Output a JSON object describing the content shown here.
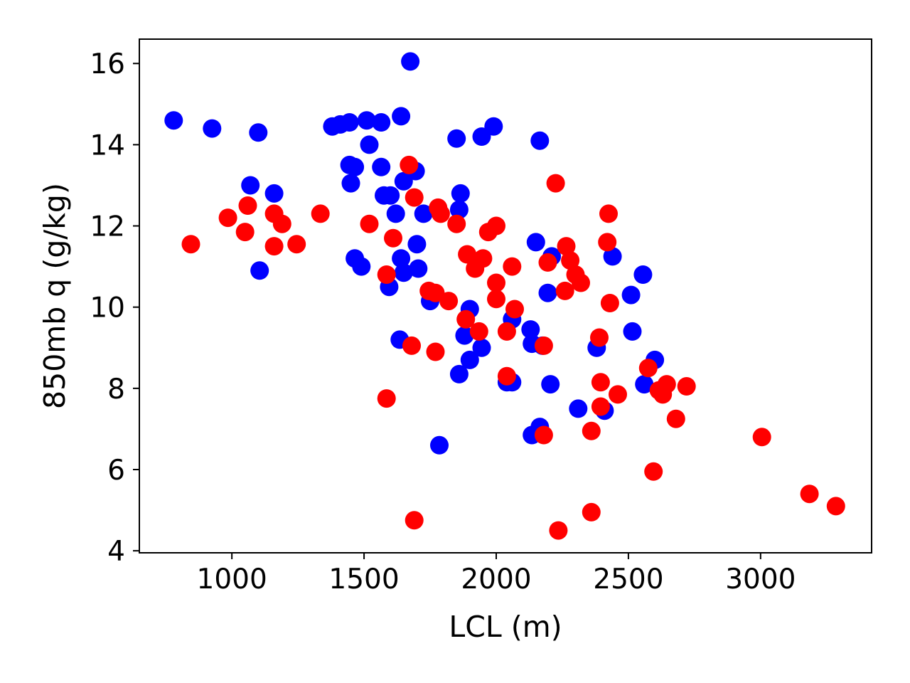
{
  "chart_data": {
    "type": "scatter",
    "xlabel": "LCL (m)",
    "ylabel": "850mb q (g/kg)",
    "xlim": [
      650,
      3420
    ],
    "ylim": [
      3.95,
      16.6
    ],
    "xticks": [
      1000,
      1500,
      2000,
      2500,
      3000
    ],
    "yticks": [
      4,
      6,
      8,
      10,
      12,
      14,
      16
    ],
    "xtick_labels": [
      "1000",
      "1500",
      "2000",
      "2500",
      "3000"
    ],
    "ytick_labels": [
      "4",
      "6",
      "8",
      "10",
      "12",
      "14",
      "16"
    ],
    "grid": false,
    "legend": "none",
    "series": [
      {
        "color": "#0000ff",
        "points": [
          [
            780,
            14.6
          ],
          [
            925,
            14.4
          ],
          [
            1100,
            14.3
          ],
          [
            1070,
            13.0
          ],
          [
            1160,
            12.8
          ],
          [
            1105,
            10.9
          ],
          [
            1380,
            14.45
          ],
          [
            1410,
            14.5
          ],
          [
            1445,
            14.55
          ],
          [
            1510,
            14.6
          ],
          [
            1565,
            14.55
          ],
          [
            1640,
            14.7
          ],
          [
            1675,
            16.05
          ],
          [
            1520,
            14.0
          ],
          [
            1445,
            13.5
          ],
          [
            1465,
            13.45
          ],
          [
            1450,
            13.05
          ],
          [
            1565,
            13.45
          ],
          [
            1575,
            12.75
          ],
          [
            1600,
            12.75
          ],
          [
            1620,
            12.3
          ],
          [
            1650,
            13.1
          ],
          [
            1695,
            13.35
          ],
          [
            1725,
            12.3
          ],
          [
            1700,
            11.55
          ],
          [
            1465,
            11.2
          ],
          [
            1490,
            11.0
          ],
          [
            1640,
            11.2
          ],
          [
            1650,
            10.85
          ],
          [
            1705,
            10.95
          ],
          [
            1595,
            10.5
          ],
          [
            1750,
            10.15
          ],
          [
            1635,
            9.2
          ],
          [
            1850,
            14.15
          ],
          [
            1945,
            14.2
          ],
          [
            1990,
            14.45
          ],
          [
            2165,
            14.1
          ],
          [
            1865,
            12.8
          ],
          [
            1860,
            12.4
          ],
          [
            1900,
            9.95
          ],
          [
            1880,
            9.3
          ],
          [
            1900,
            8.7
          ],
          [
            1945,
            9.0
          ],
          [
            1860,
            8.35
          ],
          [
            1785,
            6.6
          ],
          [
            2060,
            9.7
          ],
          [
            2130,
            9.45
          ],
          [
            2135,
            9.1
          ],
          [
            2175,
            9.05
          ],
          [
            2040,
            8.15
          ],
          [
            2060,
            8.15
          ],
          [
            2150,
            11.6
          ],
          [
            2210,
            11.25
          ],
          [
            2195,
            10.35
          ],
          [
            2205,
            8.1
          ],
          [
            2310,
            7.5
          ],
          [
            2135,
            6.85
          ],
          [
            2165,
            7.05
          ],
          [
            2380,
            9.0
          ],
          [
            2410,
            7.45
          ],
          [
            2440,
            11.25
          ],
          [
            2510,
            10.3
          ],
          [
            2555,
            10.8
          ],
          [
            2515,
            9.4
          ],
          [
            2600,
            8.7
          ],
          [
            2560,
            8.1
          ]
        ]
      },
      {
        "color": "#ff0000",
        "points": [
          [
            845,
            11.55
          ],
          [
            985,
            12.2
          ],
          [
            1060,
            12.5
          ],
          [
            1050,
            11.85
          ],
          [
            1160,
            12.3
          ],
          [
            1190,
            12.05
          ],
          [
            1160,
            11.5
          ],
          [
            1245,
            11.55
          ],
          [
            1335,
            12.3
          ],
          [
            1520,
            12.05
          ],
          [
            1610,
            11.7
          ],
          [
            1585,
            10.8
          ],
          [
            1585,
            7.75
          ],
          [
            1690,
            4.75
          ],
          [
            1670,
            13.5
          ],
          [
            1690,
            12.7
          ],
          [
            1780,
            12.45
          ],
          [
            1790,
            12.3
          ],
          [
            1850,
            12.05
          ],
          [
            1745,
            10.4
          ],
          [
            1770,
            10.35
          ],
          [
            1820,
            10.15
          ],
          [
            1770,
            8.9
          ],
          [
            1680,
            9.05
          ],
          [
            1885,
            9.7
          ],
          [
            1890,
            11.3
          ],
          [
            1920,
            10.95
          ],
          [
            1950,
            11.2
          ],
          [
            1970,
            11.85
          ],
          [
            2000,
            12.0
          ],
          [
            2000,
            10.6
          ],
          [
            2000,
            10.2
          ],
          [
            2060,
            11.0
          ],
          [
            2070,
            9.95
          ],
          [
            1935,
            9.4
          ],
          [
            2040,
            9.4
          ],
          [
            2040,
            8.3
          ],
          [
            2225,
            13.05
          ],
          [
            2195,
            11.1
          ],
          [
            2265,
            11.5
          ],
          [
            2280,
            11.15
          ],
          [
            2300,
            10.8
          ],
          [
            2320,
            10.6
          ],
          [
            2260,
            10.4
          ],
          [
            2180,
            9.05
          ],
          [
            2180,
            6.85
          ],
          [
            2235,
            4.5
          ],
          [
            2425,
            12.3
          ],
          [
            2420,
            11.6
          ],
          [
            2430,
            10.1
          ],
          [
            2390,
            9.25
          ],
          [
            2395,
            8.15
          ],
          [
            2395,
            7.55
          ],
          [
            2360,
            6.95
          ],
          [
            2360,
            4.95
          ],
          [
            2460,
            7.85
          ],
          [
            2575,
            8.5
          ],
          [
            2615,
            7.95
          ],
          [
            2630,
            7.85
          ],
          [
            2645,
            8.1
          ],
          [
            2680,
            7.25
          ],
          [
            2720,
            8.05
          ],
          [
            2595,
            5.95
          ],
          [
            3005,
            6.8
          ],
          [
            3185,
            5.4
          ],
          [
            3285,
            5.1
          ]
        ]
      }
    ]
  }
}
